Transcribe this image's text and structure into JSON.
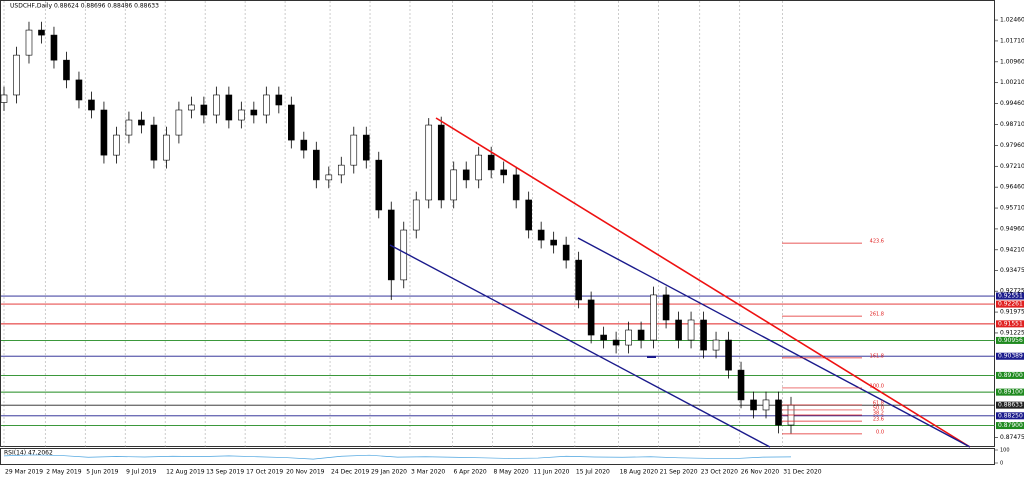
{
  "chart_data": {
    "type": "candlestick",
    "title": "USDCHF,Daily  0.88624 0.88696 0.88486 0.88633",
    "open": [
      0.995,
      0.9977,
      1.012,
      1.021,
      1.0192,
      1.0102,
      1.0031,
      0.9959,
      0.9923,
      0.9761,
      0.9833,
      0.9887,
      0.9869,
      0.9743,
      0.9833,
      0.9923,
      0.9941,
      0.9905,
      0.9977,
      0.9887,
      0.9923,
      0.9905,
      0.9977,
      0.9941,
      0.9815,
      0.9779,
      0.9672,
      0.969,
      0.9725,
      0.9833,
      0.9743,
      0.9564,
      0.9313,
      0.9492,
      0.96,
      0.9869,
      0.96,
      0.9708,
      0.9672,
      0.9761,
      0.9708,
      0.969,
      0.96,
      0.9492,
      0.9456,
      0.9438,
      0.9384,
      0.9241,
      0.9115,
      0.9097,
      0.9079,
      0.9133,
      0.9097,
      0.9259,
      0.9169,
      0.9097,
      0.9169,
      0.9061,
      0.9097,
      0.8989,
      0.8882,
      0.8846,
      0.8882,
      0.8792
    ],
    "high": [
      1.0007,
      1.015,
      1.024,
      1.024,
      1.0222,
      1.0132,
      1.0061,
      0.9989,
      0.9953,
      0.9863,
      0.9917,
      0.9917,
      0.9899,
      0.9863,
      0.9953,
      0.9971,
      0.9971,
      1.0007,
      1.0007,
      0.9953,
      0.9953,
      1.0007,
      1.0007,
      0.9971,
      0.9845,
      0.9809,
      0.972,
      0.9755,
      0.9863,
      0.9863,
      0.9773,
      0.9594,
      0.9522,
      0.963,
      0.9894,
      0.9899,
      0.9738,
      0.9738,
      0.9791,
      0.9791,
      0.9738,
      0.972,
      0.963,
      0.9522,
      0.9486,
      0.9468,
      0.9414,
      0.9271,
      0.9145,
      0.9127,
      0.9163,
      0.9163,
      0.9289,
      0.9289,
      0.9199,
      0.9199,
      0.9199,
      0.9127,
      0.9127,
      0.9019,
      0.8912,
      0.8912,
      0.8912,
      0.8893
    ],
    "low": [
      0.992,
      0.9947,
      1.009,
      1.0162,
      1.0072,
      1.0001,
      0.9929,
      0.9893,
      0.9731,
      0.9731,
      0.9803,
      0.9839,
      0.9713,
      0.9713,
      0.9803,
      0.9893,
      0.9875,
      0.9875,
      0.9857,
      0.9857,
      0.9875,
      0.9875,
      0.9911,
      0.9785,
      0.9749,
      0.9642,
      0.9642,
      0.966,
      0.9695,
      0.9713,
      0.9534,
      0.9241,
      0.9283,
      0.9462,
      0.957,
      0.957,
      0.957,
      0.9642,
      0.9642,
      0.9678,
      0.966,
      0.957,
      0.9462,
      0.9426,
      0.9408,
      0.9354,
      0.9211,
      0.9085,
      0.9067,
      0.9049,
      0.9049,
      0.9067,
      0.9067,
      0.9139,
      0.9067,
      0.9067,
      0.9031,
      0.9031,
      0.8959,
      0.8852,
      0.8816,
      0.8816,
      0.8762,
      0.8762
    ],
    "close": [
      0.9977,
      1.012,
      1.021,
      1.0192,
      1.0102,
      1.0031,
      0.9959,
      0.9923,
      0.9761,
      0.9833,
      0.9887,
      0.9869,
      0.9743,
      0.9833,
      0.9923,
      0.9941,
      0.9905,
      0.9977,
      0.9887,
      0.9923,
      0.9905,
      0.9977,
      0.9941,
      0.9815,
      0.9779,
      0.9672,
      0.969,
      0.9725,
      0.9833,
      0.9743,
      0.9564,
      0.9313,
      0.9492,
      0.96,
      0.9869,
      0.96,
      0.9708,
      0.9672,
      0.9761,
      0.9708,
      0.969,
      0.96,
      0.9492,
      0.9456,
      0.9438,
      0.9384,
      0.9241,
      0.9115,
      0.9097,
      0.9079,
      0.9133,
      0.9097,
      0.9259,
      0.9169,
      0.9097,
      0.9169,
      0.9061,
      0.9097,
      0.8989,
      0.8882,
      0.8846,
      0.8882,
      0.8792,
      0.8863
    ],
    "ylim": [
      0.8713,
      1.0318
    ],
    "yticks": [
      {
        "value": 1.0246,
        "label": "1.02460"
      },
      {
        "value": 1.0171,
        "label": "1.01710"
      },
      {
        "value": 1.0096,
        "label": "1.00960"
      },
      {
        "value": 1.0021,
        "label": "1.00210"
      },
      {
        "value": 0.9946,
        "label": "0.99460"
      },
      {
        "value": 0.9871,
        "label": "0.98710"
      },
      {
        "value": 0.9796,
        "label": "0.97960"
      },
      {
        "value": 0.9721,
        "label": "0.97210"
      },
      {
        "value": 0.9646,
        "label": "0.96460"
      },
      {
        "value": 0.9571,
        "label": "0.95710"
      },
      {
        "value": 0.9496,
        "label": "0.94960"
      },
      {
        "value": 0.9421,
        "label": "0.94210"
      },
      {
        "value": 0.93475,
        "label": "0.93475"
      },
      {
        "value": 0.92725,
        "label": "0.92725"
      },
      {
        "value": 0.91975,
        "label": "0.91975"
      },
      {
        "value": 0.91225,
        "label": "0.91225"
      },
      {
        "value": 0.87475,
        "label": "0.87475"
      }
    ],
    "xticks": [
      {
        "value": 0,
        "label": "29 Mar 2019"
      },
      {
        "value": 3.3,
        "label": "2 May 2019"
      },
      {
        "value": 6.5,
        "label": "5 Jun 2019"
      },
      {
        "value": 9.7,
        "label": "9 Jul 2019"
      },
      {
        "value": 12.9,
        "label": "12 Aug 2019"
      },
      {
        "value": 16.1,
        "label": "13 Sep 2019"
      },
      {
        "value": 19.3,
        "label": "17 Oct 2019"
      },
      {
        "value": 22.5,
        "label": "20 Nov 2019"
      },
      {
        "value": 26.1,
        "label": "24 Dec 2019"
      },
      {
        "value": 29.3,
        "label": "29 Jan 2020"
      },
      {
        "value": 32.5,
        "label": "3 Mar 2020"
      },
      {
        "value": 35.9,
        "label": "6 Apr 2020"
      },
      {
        "value": 39.1,
        "label": "8 May 2020"
      },
      {
        "value": 42.3,
        "label": "11 Jun 2020"
      },
      {
        "value": 45.7,
        "label": "15 Jul 2020"
      },
      {
        "value": 49.2,
        "label": "18 Aug 2020"
      },
      {
        "value": 52.4,
        "label": "21 Sep 2020"
      },
      {
        "value": 55.7,
        "label": "23 Oct 2020"
      },
      {
        "value": 58.9,
        "label": "26 Nov 2020"
      },
      {
        "value": 62.3,
        "label": "31 Dec 2020"
      }
    ],
    "grid": true,
    "levels": [
      {
        "value": 0.92551,
        "label": "0.92551",
        "color": "#1a1a8c"
      },
      {
        "value": 0.92261,
        "label": "0.92261",
        "color": "#e02020"
      },
      {
        "value": 0.91551,
        "label": "0.91551",
        "color": "#e02020"
      },
      {
        "value": 0.90956,
        "label": "0.90956",
        "color": "#1f8a1f"
      },
      {
        "value": 0.90389,
        "label": "0.90389",
        "color": "#1a1a8c"
      },
      {
        "value": 0.897,
        "label": "0.89700",
        "color": "#1f8a1f"
      },
      {
        "value": 0.891,
        "label": "0.89100",
        "color": "#1f8a1f"
      },
      {
        "value": 0.88633,
        "label": "0.88633",
        "color": "#222222"
      },
      {
        "value": 0.8825,
        "label": "0.88250",
        "color": "#1a1a8c"
      },
      {
        "value": 0.879,
        "label": "0.87900",
        "color": "#1f8a1f"
      }
    ],
    "fibonacci": [
      {
        "label": "423.6",
        "price": 0.9445
      },
      {
        "label": "261.8",
        "price": 0.9183
      },
      {
        "label": "161.8",
        "price": 0.9033
      },
      {
        "label": "100.0",
        "price": 0.8925
      },
      {
        "label": "61.8",
        "price": 0.8864
      },
      {
        "label": "50.0",
        "price": 0.8846
      },
      {
        "label": "38.2",
        "price": 0.8828
      },
      {
        "label": "23.6",
        "price": 0.8806
      },
      {
        "label": "0.0",
        "price": 0.876
      }
    ],
    "rsi": {
      "label": "RSI(14) 47.2062",
      "ylim": [
        0,
        100
      ],
      "yticks": [
        100,
        0
      ],
      "values": [
        55,
        62,
        58,
        44,
        50,
        46,
        52,
        49,
        55,
        48,
        42,
        30,
        52,
        60,
        45,
        48,
        44,
        40,
        35,
        38,
        52,
        46,
        44,
        48,
        40,
        36,
        34,
        45,
        47
      ]
    }
  }
}
